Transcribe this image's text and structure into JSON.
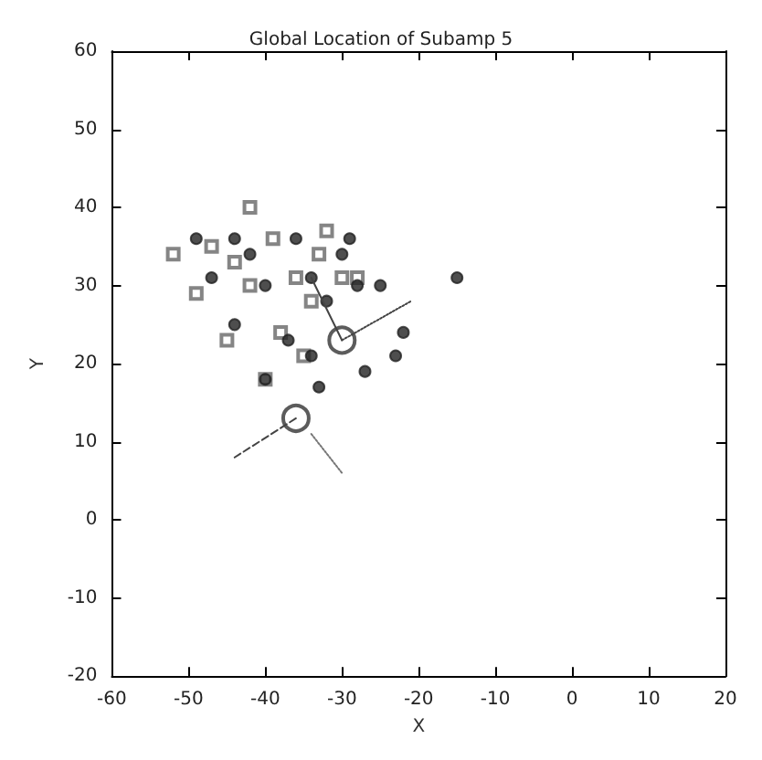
{
  "chart_data": {
    "type": "scatter",
    "title": "Global Location of Subamp 5",
    "xlabel": "X",
    "ylabel": "Y",
    "xlim": [
      -60,
      20
    ],
    "ylim": [
      -20,
      60
    ],
    "xticks": [
      -60,
      -50,
      -40,
      -30,
      -20,
      -10,
      0,
      10,
      20
    ],
    "yticks": [
      -20,
      -10,
      0,
      10,
      20,
      30,
      40,
      50,
      60
    ],
    "grid": false,
    "series": [
      {
        "marker": "square",
        "color": "#666666",
        "x": [
          -52,
          -47,
          -42,
          -44,
          -39,
          -32,
          -49,
          -42,
          -36,
          -33,
          -30,
          -28,
          -34,
          -38,
          -35,
          -40,
          -45
        ],
        "values": [
          34,
          35,
          40,
          33,
          36,
          37,
          29,
          30,
          31,
          34,
          31,
          31,
          28,
          24,
          21,
          18,
          23
        ]
      },
      {
        "marker": "circle",
        "color": "#222222",
        "x": [
          -49,
          -44,
          -42,
          -36,
          -47,
          -40,
          -34,
          -29,
          -30,
          -28,
          -25,
          -32,
          -37,
          -22,
          -34,
          -23,
          -40,
          -33,
          -27,
          -44,
          -15
        ],
        "values": [
          36,
          36,
          34,
          36,
          31,
          30,
          31,
          36,
          34,
          30,
          30,
          28,
          23,
          24,
          21,
          21,
          18,
          17,
          19,
          25,
          31
        ]
      },
      {
        "type": "bubble",
        "marker": "circle",
        "color": "#333333",
        "x": [
          -30,
          -36
        ],
        "values": [
          23,
          13
        ],
        "sizes": [
          1,
          1
        ]
      },
      {
        "type": "line",
        "marker": "none",
        "line_style": "solid",
        "color": "#444444",
        "x": [
          -34,
          -30
        ],
        "values": [
          31,
          23
        ]
      },
      {
        "type": "line",
        "marker": "none",
        "line_style": "dotted",
        "color": "#444444",
        "x": [
          -30,
          -21
        ],
        "values": [
          23,
          28
        ]
      },
      {
        "type": "line",
        "marker": "none",
        "line_style": "dashed",
        "color": "#444444",
        "x": [
          -36,
          -44
        ],
        "values": [
          13,
          8
        ]
      },
      {
        "type": "line",
        "marker": "none",
        "line_style": "dotted",
        "color": "#777777",
        "x": [
          -34,
          -30
        ],
        "values": [
          11,
          6
        ]
      }
    ]
  }
}
